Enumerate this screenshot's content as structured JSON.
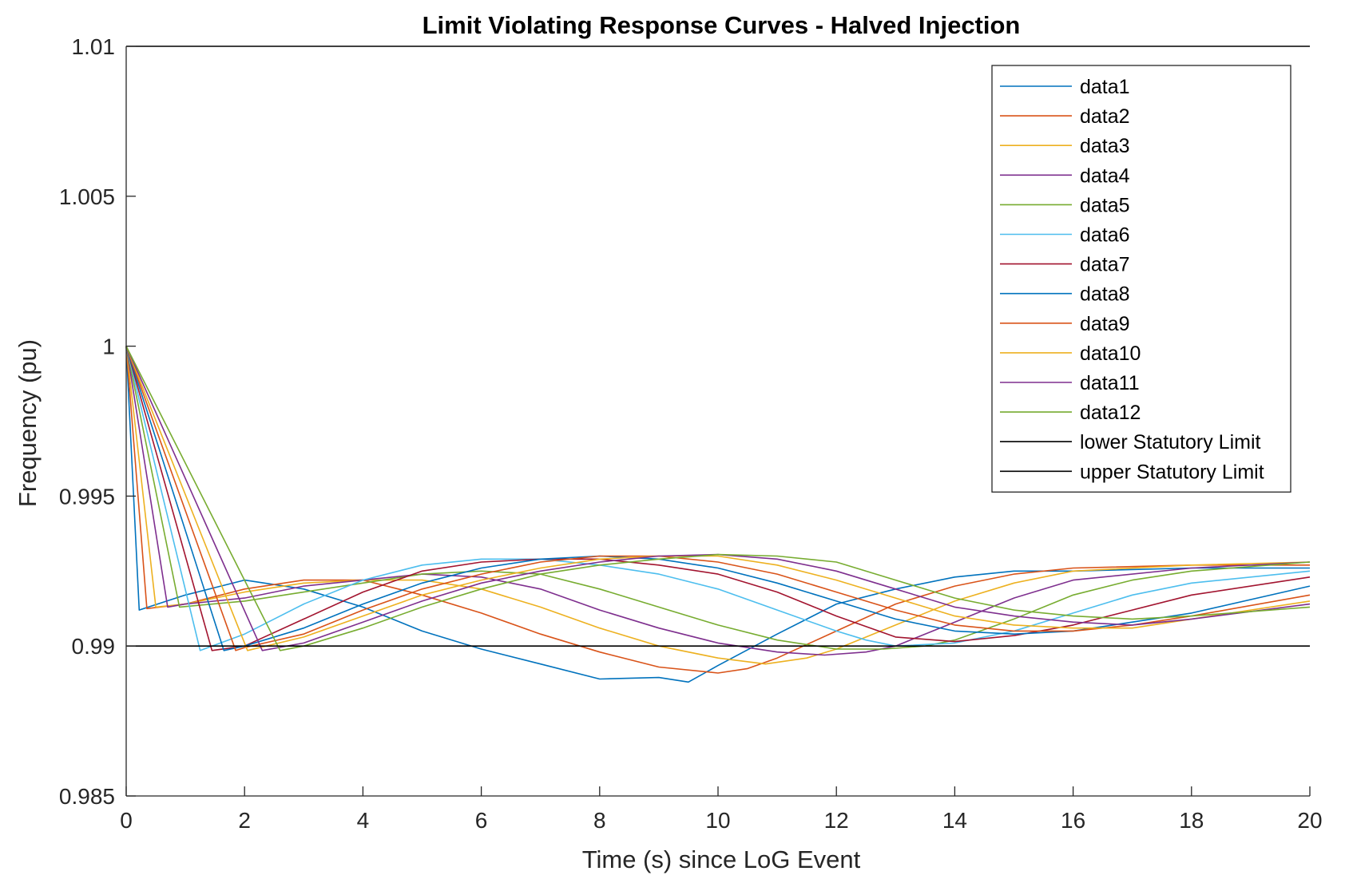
{
  "chart_data": {
    "type": "line",
    "title": "Limit Violating Response Curves - Halved Injection",
    "xlabel": "Time (s) since LoG Event",
    "ylabel": "Frequency (pu)",
    "xlim": [
      0,
      20
    ],
    "ylim": [
      0.985,
      1.01
    ],
    "xticks": [
      0,
      2,
      4,
      6,
      8,
      10,
      12,
      14,
      16,
      18,
      20
    ],
    "yticks": [
      0.985,
      0.99,
      0.995,
      1,
      1.005,
      1.01
    ],
    "xtick_labels": [
      "0",
      "2",
      "4",
      "6",
      "8",
      "10",
      "12",
      "14",
      "16",
      "18",
      "20"
    ],
    "ytick_labels": [
      "0.985",
      "0.99",
      "0.995",
      "1",
      "1.005",
      "1.01"
    ],
    "grid": false,
    "legend_position": "top-right",
    "series": [
      {
        "name": "data1",
        "color": "#0072BD",
        "points": [
          [
            0,
            1.0
          ],
          [
            0.22,
            0.9912
          ],
          [
            1,
            0.9917
          ],
          [
            2,
            0.9922
          ],
          [
            3,
            0.9919
          ],
          [
            4,
            0.9913
          ],
          [
            5,
            0.9905
          ],
          [
            6,
            0.9899
          ],
          [
            7,
            0.9894
          ],
          [
            8,
            0.9889
          ],
          [
            9,
            0.98895
          ],
          [
            9.5,
            0.9888
          ],
          [
            10,
            0.98935
          ],
          [
            11,
            0.9904
          ],
          [
            12,
            0.9914
          ],
          [
            13,
            0.9919
          ],
          [
            14,
            0.9923
          ],
          [
            15,
            0.9925
          ],
          [
            16,
            0.9925
          ],
          [
            18,
            0.9926
          ],
          [
            20,
            0.9926
          ]
        ]
      },
      {
        "name": "data2",
        "color": "#D95319",
        "points": [
          [
            0,
            1.0
          ],
          [
            0.35,
            0.99125
          ],
          [
            1,
            0.9914
          ],
          [
            2,
            0.9919
          ],
          [
            3,
            0.9922
          ],
          [
            4,
            0.9922
          ],
          [
            5,
            0.9917
          ],
          [
            6,
            0.9911
          ],
          [
            7,
            0.9904
          ],
          [
            8,
            0.9898
          ],
          [
            9,
            0.9893
          ],
          [
            10,
            0.9891
          ],
          [
            10.5,
            0.98925
          ],
          [
            11,
            0.9896
          ],
          [
            12,
            0.9905
          ],
          [
            13,
            0.9914
          ],
          [
            14,
            0.992
          ],
          [
            15,
            0.9924
          ],
          [
            16,
            0.9926
          ],
          [
            18,
            0.9927
          ],
          [
            20,
            0.9927
          ]
        ]
      },
      {
        "name": "data3",
        "color": "#EDB120",
        "points": [
          [
            0,
            1.0
          ],
          [
            0.5,
            0.9913
          ],
          [
            1,
            0.9914
          ],
          [
            2,
            0.9918
          ],
          [
            3,
            0.9921
          ],
          [
            4,
            0.9922
          ],
          [
            5,
            0.9922
          ],
          [
            6,
            0.9919
          ],
          [
            7,
            0.9913
          ],
          [
            8,
            0.9906
          ],
          [
            9,
            0.99
          ],
          [
            10,
            0.9896
          ],
          [
            10.8,
            0.9894
          ],
          [
            11.5,
            0.9896
          ],
          [
            12,
            0.9899
          ],
          [
            13,
            0.9907
          ],
          [
            14,
            0.9915
          ],
          [
            15,
            0.9921
          ],
          [
            16,
            0.9925
          ],
          [
            18,
            0.9927
          ],
          [
            20,
            0.9928
          ]
        ]
      },
      {
        "name": "data4",
        "color": "#7E2F8E",
        "points": [
          [
            0,
            1.0
          ],
          [
            0.7,
            0.9913
          ],
          [
            1,
            0.9914
          ],
          [
            2,
            0.9916
          ],
          [
            3,
            0.992
          ],
          [
            4,
            0.9922
          ],
          [
            5,
            0.9924
          ],
          [
            6,
            0.9923
          ],
          [
            7,
            0.9919
          ],
          [
            8,
            0.9912
          ],
          [
            9,
            0.9906
          ],
          [
            10,
            0.9901
          ],
          [
            11,
            0.9898
          ],
          [
            11.8,
            0.9897
          ],
          [
            12.5,
            0.9898
          ],
          [
            13,
            0.99
          ],
          [
            14,
            0.9908
          ],
          [
            15,
            0.9916
          ],
          [
            16,
            0.9922
          ],
          [
            18,
            0.9926
          ],
          [
            20,
            0.9928
          ]
        ]
      },
      {
        "name": "data5",
        "color": "#77AC30",
        "points": [
          [
            0,
            1.0
          ],
          [
            0.9,
            0.9913
          ],
          [
            2,
            0.9915
          ],
          [
            3,
            0.9918
          ],
          [
            4,
            0.9921
          ],
          [
            5,
            0.9924
          ],
          [
            6,
            0.9925
          ],
          [
            7,
            0.9924
          ],
          [
            8,
            0.9919
          ],
          [
            9,
            0.9913
          ],
          [
            10,
            0.9907
          ],
          [
            11,
            0.9902
          ],
          [
            12,
            0.9899
          ],
          [
            12.8,
            0.9899
          ],
          [
            13.5,
            0.99
          ],
          [
            14,
            0.9902
          ],
          [
            15,
            0.9909
          ],
          [
            16,
            0.9917
          ],
          [
            17,
            0.9922
          ],
          [
            18,
            0.9925
          ],
          [
            20,
            0.9928
          ]
        ]
      },
      {
        "name": "data6",
        "color": "#4DBEEE",
        "points": [
          [
            0,
            1.0
          ],
          [
            1.25,
            0.98985
          ],
          [
            2,
            0.9904
          ],
          [
            3,
            0.9914
          ],
          [
            4,
            0.9922
          ],
          [
            5,
            0.9927
          ],
          [
            6,
            0.9929
          ],
          [
            7,
            0.9929
          ],
          [
            8,
            0.9927
          ],
          [
            9,
            0.9924
          ],
          [
            10,
            0.9919
          ],
          [
            11,
            0.9912
          ],
          [
            12,
            0.9905
          ],
          [
            12.5,
            0.9902
          ],
          [
            13,
            0.99
          ],
          [
            14,
            0.9901
          ],
          [
            15,
            0.9905
          ],
          [
            16,
            0.9911
          ],
          [
            17,
            0.9917
          ],
          [
            18,
            0.9921
          ],
          [
            20,
            0.9925
          ]
        ]
      },
      {
        "name": "data7",
        "color": "#A2142F",
        "points": [
          [
            0,
            1.0
          ],
          [
            1.45,
            0.98985
          ],
          [
            2,
            0.99
          ],
          [
            3,
            0.9909
          ],
          [
            4,
            0.9918
          ],
          [
            5,
            0.9925
          ],
          [
            6,
            0.9928
          ],
          [
            7,
            0.9929
          ],
          [
            8,
            0.9929
          ],
          [
            9,
            0.9927
          ],
          [
            10,
            0.9924
          ],
          [
            11,
            0.9918
          ],
          [
            12,
            0.991
          ],
          [
            13,
            0.9903
          ],
          [
            14,
            0.99015
          ],
          [
            15,
            0.99035
          ],
          [
            16,
            0.9907
          ],
          [
            17,
            0.9912
          ],
          [
            18,
            0.9917
          ],
          [
            20,
            0.9923
          ]
        ]
      },
      {
        "name": "data8",
        "color": "#0072BD",
        "points": [
          [
            0,
            1.0
          ],
          [
            1.65,
            0.98985
          ],
          [
            2,
            0.99
          ],
          [
            3,
            0.9906
          ],
          [
            4,
            0.9914
          ],
          [
            5,
            0.9921
          ],
          [
            6,
            0.9926
          ],
          [
            7,
            0.9929
          ],
          [
            8,
            0.993
          ],
          [
            9,
            0.9929
          ],
          [
            10,
            0.9926
          ],
          [
            11,
            0.9921
          ],
          [
            12,
            0.9915
          ],
          [
            13,
            0.9909
          ],
          [
            14,
            0.9905
          ],
          [
            15,
            0.9904
          ],
          [
            16,
            0.9905
          ],
          [
            17,
            0.9908
          ],
          [
            18,
            0.9911
          ],
          [
            20,
            0.992
          ]
        ]
      },
      {
        "name": "data9",
        "color": "#D95319",
        "points": [
          [
            0,
            1.0
          ],
          [
            1.85,
            0.98985
          ],
          [
            2,
            0.98995
          ],
          [
            3,
            0.9904
          ],
          [
            4,
            0.9912
          ],
          [
            5,
            0.9919
          ],
          [
            6,
            0.9924
          ],
          [
            7,
            0.9928
          ],
          [
            8,
            0.993
          ],
          [
            9,
            0.993
          ],
          [
            10,
            0.9928
          ],
          [
            11,
            0.9924
          ],
          [
            12,
            0.9918
          ],
          [
            13,
            0.9912
          ],
          [
            14,
            0.9907
          ],
          [
            15,
            0.9905
          ],
          [
            16,
            0.9905
          ],
          [
            17,
            0.9907
          ],
          [
            18,
            0.991
          ],
          [
            20,
            0.9917
          ]
        ]
      },
      {
        "name": "data10",
        "color": "#EDB120",
        "points": [
          [
            0,
            1.0
          ],
          [
            2.05,
            0.98985
          ],
          [
            3,
            0.9903
          ],
          [
            4,
            0.991
          ],
          [
            5,
            0.9917
          ],
          [
            6,
            0.9922
          ],
          [
            7,
            0.9926
          ],
          [
            8,
            0.9929
          ],
          [
            9,
            0.993
          ],
          [
            10,
            0.993
          ],
          [
            11,
            0.9927
          ],
          [
            12,
            0.9922
          ],
          [
            13,
            0.9916
          ],
          [
            14,
            0.991
          ],
          [
            15,
            0.9907
          ],
          [
            16,
            0.9906
          ],
          [
            17,
            0.9906
          ],
          [
            18,
            0.9909
          ],
          [
            20,
            0.9915
          ]
        ]
      },
      {
        "name": "data11",
        "color": "#7E2F8E",
        "points": [
          [
            0,
            1.0
          ],
          [
            2.3,
            0.98985
          ],
          [
            3,
            0.9901
          ],
          [
            4,
            0.9908
          ],
          [
            5,
            0.9915
          ],
          [
            6,
            0.9921
          ],
          [
            7,
            0.9925
          ],
          [
            8,
            0.9928
          ],
          [
            9,
            0.993
          ],
          [
            10,
            0.99305
          ],
          [
            11,
            0.9929
          ],
          [
            12,
            0.9925
          ],
          [
            13,
            0.9919
          ],
          [
            14,
            0.9913
          ],
          [
            15,
            0.991
          ],
          [
            16,
            0.9908
          ],
          [
            17,
            0.9907
          ],
          [
            18,
            0.9909
          ],
          [
            20,
            0.9914
          ]
        ]
      },
      {
        "name": "data12",
        "color": "#77AC30",
        "points": [
          [
            0,
            1.0
          ],
          [
            2.6,
            0.98985
          ],
          [
            3,
            0.99
          ],
          [
            4,
            0.9906
          ],
          [
            5,
            0.9913
          ],
          [
            6,
            0.9919
          ],
          [
            7,
            0.9924
          ],
          [
            8,
            0.9927
          ],
          [
            9,
            0.9929
          ],
          [
            10,
            0.99305
          ],
          [
            11,
            0.993
          ],
          [
            12,
            0.9928
          ],
          [
            13,
            0.9922
          ],
          [
            14,
            0.9916
          ],
          [
            15,
            0.9912
          ],
          [
            16,
            0.991
          ],
          [
            17,
            0.9909
          ],
          [
            18,
            0.991
          ],
          [
            20,
            0.9913
          ]
        ]
      },
      {
        "name": "lower Statutory Limit",
        "color": "#000000",
        "points": [
          [
            0,
            0.99
          ],
          [
            20,
            0.99
          ]
        ]
      },
      {
        "name": "upper Statutory Limit",
        "color": "#000000",
        "points": [
          [
            0,
            1.01
          ],
          [
            20,
            1.01
          ]
        ]
      }
    ]
  }
}
